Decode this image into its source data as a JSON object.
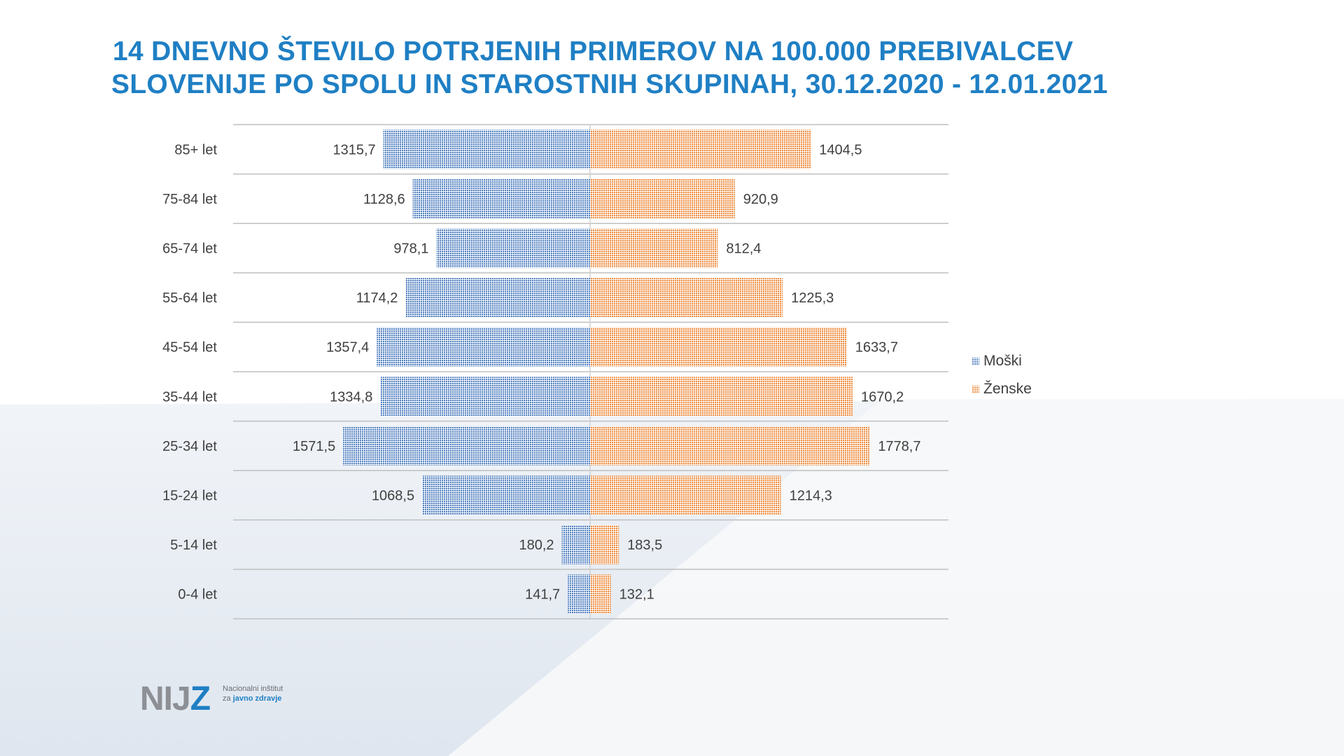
{
  "title": {
    "line1": "14 DNEVNO ŠTEVILO POTRJENIH PRIMEROV NA 100.000 PREBIVALCEV",
    "line2": "SLOVENIJE PO SPOLU IN STAROSTNIH SKUPINAH, 30.12.2020 - 12.01.2021"
  },
  "legend": {
    "male": "Moški",
    "female": "Ženske"
  },
  "colors": {
    "title": "#1f7fc4",
    "male": "#4f7fc0",
    "female": "#ed8b3e",
    "text": "#404040",
    "grid": "#bfbfbf"
  },
  "logo": {
    "mark_gray": "NIJ",
    "mark_blue": "Z",
    "line1": "Nacionalni inštitut",
    "line2_prefix": "za ",
    "line2_bold": "javno zdravje"
  },
  "chart_data": {
    "type": "bar",
    "orientation": "horizontal-diverging",
    "categories": [
      "85+ let",
      "75-84 let",
      "65-74 let",
      "55-64 let",
      "45-54 let",
      "35-44 let",
      "25-34 let",
      "15-24 let",
      "5-14 let",
      "0-4 let"
    ],
    "series": [
      {
        "name": "Moški",
        "values": [
          1315.7,
          1128.6,
          978.1,
          1174.2,
          1357.4,
          1334.8,
          1571.5,
          1068.5,
          180.2,
          141.7
        ],
        "labels": [
          "1315,7",
          "1128,6",
          "978,1",
          "1174,2",
          "1357,4",
          "1334,8",
          "1571,5",
          "1068,5",
          "180,2",
          "141,7"
        ]
      },
      {
        "name": "Ženske",
        "values": [
          1404.5,
          920.9,
          812.4,
          1225.3,
          1633.7,
          1670.2,
          1778.7,
          1214.3,
          183.5,
          132.1
        ],
        "labels": [
          "1404,5",
          "920,9",
          "812,4",
          "1225,3",
          "1633,7",
          "1670,2",
          "1778,7",
          "1214,3",
          "183,5",
          "132,1"
        ]
      }
    ],
    "grid": true,
    "legend_position": "right"
  }
}
